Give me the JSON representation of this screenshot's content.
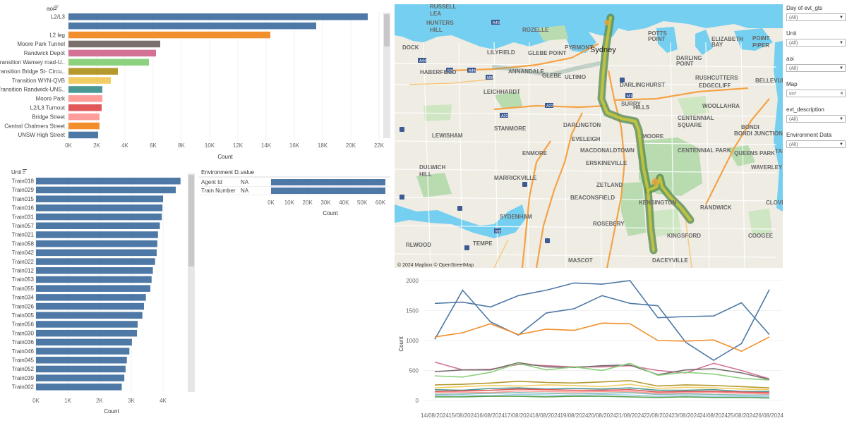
{
  "aoi_chart": {
    "title": "aoi",
    "xlabel": "Count",
    "ticks": [
      "0K",
      "2K",
      "4K",
      "6K",
      "8K",
      "10K",
      "12K",
      "14K",
      "16K",
      "18K",
      "20K",
      "22K"
    ],
    "xmax": 22000,
    "rows": [
      {
        "label": "L2/L3",
        "value": 21200,
        "color": "#4e79a7"
      },
      {
        "label": "",
        "value": 17550,
        "color": "#4e79a7"
      },
      {
        "label": "L2 leg",
        "value": 14300,
        "color": "#f28e2b"
      },
      {
        "label": "Moore Park Tunnel",
        "value": 6500,
        "color": "#79706e"
      },
      {
        "label": "Randwick Depot",
        "value": 6200,
        "color": "#d37295"
      },
      {
        "label": "Transition Wansey road-U..",
        "value": 5700,
        "color": "#8cd17d"
      },
      {
        "label": "Transition Bridge St- Circu..",
        "value": 3500,
        "color": "#b6992d"
      },
      {
        "label": "Transition WYN-QVB",
        "value": 3000,
        "color": "#f1ce63"
      },
      {
        "label": "Transition Randwick-UNS..",
        "value": 2400,
        "color": "#499894"
      },
      {
        "label": "Moore Park",
        "value": 2400,
        "color": "#ff9d9a"
      },
      {
        "label": "L2/L3 Turnout",
        "value": 2350,
        "color": "#e15759"
      },
      {
        "label": "Bridge Street",
        "value": 2200,
        "color": "#ff9d9a"
      },
      {
        "label": "Central Chalmers Street",
        "value": 2200,
        "color": "#f28e2b"
      },
      {
        "label": "UNSW High Street",
        "value": 2100,
        "color": "#4e79a7"
      }
    ]
  },
  "unit_chart": {
    "title": "Unit",
    "xlabel": "Count",
    "ticks": [
      "0K",
      "1K",
      "2K",
      "3K",
      "4K"
    ],
    "xmax": 4000,
    "color": "#4e79a7",
    "rows": [
      {
        "label": "Train018",
        "value": 4550
      },
      {
        "label": "Train029",
        "value": 4400
      },
      {
        "label": "Train015",
        "value": 4000
      },
      {
        "label": "Train016",
        "value": 3980
      },
      {
        "label": "Train031",
        "value": 3960
      },
      {
        "label": "Train057",
        "value": 3900
      },
      {
        "label": "Train021",
        "value": 3840
      },
      {
        "label": "Train058",
        "value": 3820
      },
      {
        "label": "Train042",
        "value": 3800
      },
      {
        "label": "Train022",
        "value": 3750
      },
      {
        "label": "Train012",
        "value": 3680
      },
      {
        "label": "Train053",
        "value": 3640
      },
      {
        "label": "Train055",
        "value": 3600
      },
      {
        "label": "Train034",
        "value": 3460
      },
      {
        "label": "Train026",
        "value": 3400
      },
      {
        "label": "Train005",
        "value": 3350
      },
      {
        "label": "Train056",
        "value": 3200
      },
      {
        "label": "Train030",
        "value": 3180
      },
      {
        "label": "Train036",
        "value": 3020
      },
      {
        "label": "Train046",
        "value": 2940
      },
      {
        "label": "Train045",
        "value": 2860
      },
      {
        "label": "Train052",
        "value": 2820
      },
      {
        "label": "Train039",
        "value": 2780
      },
      {
        "label": "Train002",
        "value": 2700
      }
    ]
  },
  "env_chart": {
    "col1": "Environment D..",
    "col2": "value",
    "xlabel": "Count",
    "ticks": [
      "0K",
      "10K",
      "20K",
      "30K",
      "40K",
      "50K",
      "60K"
    ],
    "xmax": 60000,
    "color": "#4e79a7",
    "rows": [
      {
        "label": "Agent Id",
        "value_text": "NA",
        "value": 63000
      },
      {
        "label": "Train Number",
        "value_text": "NA",
        "value": 63000
      }
    ]
  },
  "map": {
    "attribution": "© 2024 Mapbox  © OpenStreetMap",
    "city_label": "Sydney",
    "labels": [
      {
        "text": "RUSSELL",
        "x": 609,
        "y": 12
      },
      {
        "text": "LEA",
        "x": 609,
        "y": 22
      },
      {
        "text": "HUNTERS",
        "x": 604,
        "y": 35
      },
      {
        "text": "HILL",
        "x": 609,
        "y": 45
      },
      {
        "text": "DOCK",
        "x": 570,
        "y": 70
      },
      {
        "text": "ROZELLE",
        "x": 740,
        "y": 45
      },
      {
        "text": "LILYFIELD",
        "x": 690,
        "y": 77
      },
      {
        "text": "PYRMONT",
        "x": 800,
        "y": 70
      },
      {
        "text": "GLEBE POINT",
        "x": 748,
        "y": 78
      },
      {
        "text": "POTTS",
        "x": 918,
        "y": 50
      },
      {
        "text": "POINT",
        "x": 918,
        "y": 58
      },
      {
        "text": "DARLING",
        "x": 958,
        "y": 85
      },
      {
        "text": "POINT",
        "x": 958,
        "y": 93
      },
      {
        "text": "ELIZABETH",
        "x": 1008,
        "y": 58
      },
      {
        "text": "BAY",
        "x": 1008,
        "y": 66
      },
      {
        "text": "POINT",
        "x": 1066,
        "y": 57
      },
      {
        "text": "PIPER",
        "x": 1066,
        "y": 67
      },
      {
        "text": "HABERFIELD",
        "x": 595,
        "y": 105
      },
      {
        "text": "ANNANDALE",
        "x": 720,
        "y": 104
      },
      {
        "text": "LEICHHARDT",
        "x": 685,
        "y": 133
      },
      {
        "text": "GLEBE",
        "x": 768,
        "y": 110
      },
      {
        "text": "ULTIMO",
        "x": 800,
        "y": 112
      },
      {
        "text": "RUSHCUTTERS",
        "x": 985,
        "y": 113
      },
      {
        "text": "EDGECLIFF",
        "x": 990,
        "y": 124
      },
      {
        "text": "BELLEVUE HILL",
        "x": 1070,
        "y": 117
      },
      {
        "text": "DARLINGHURST",
        "x": 878,
        "y": 123
      },
      {
        "text": "WOOLLAHRA",
        "x": 995,
        "y": 153
      },
      {
        "text": "HILLS",
        "x": 897,
        "y": 155
      },
      {
        "text": "SURRY",
        "x": 880,
        "y": 150
      },
      {
        "text": "STANMORE",
        "x": 700,
        "y": 185
      },
      {
        "text": "DARLINGTON",
        "x": 798,
        "y": 180
      },
      {
        "text": "CENTENNIAL",
        "x": 960,
        "y": 170
      },
      {
        "text": "SQUARE",
        "x": 960,
        "y": 180
      },
      {
        "text": "BONDI JUNCTION",
        "x": 1040,
        "y": 192
      },
      {
        "text": "BONDI",
        "x": 1050,
        "y": 183
      },
      {
        "text": "LEWISHAM",
        "x": 612,
        "y": 195
      },
      {
        "text": "EVELEIGH",
        "x": 810,
        "y": 200
      },
      {
        "text": "ENMORE",
        "x": 740,
        "y": 220
      },
      {
        "text": "MACDONALDTOWN",
        "x": 822,
        "y": 216
      },
      {
        "text": "MOORE",
        "x": 910,
        "y": 196
      },
      {
        "text": "CENTENNIAL PARK",
        "x": 960,
        "y": 216
      },
      {
        "text": "QUEENS PARK",
        "x": 1040,
        "y": 220
      },
      {
        "text": "TAMARAMA",
        "x": 1098,
        "y": 217
      },
      {
        "text": "DULWICH",
        "x": 594,
        "y": 240
      },
      {
        "text": "HILL",
        "x": 594,
        "y": 250
      },
      {
        "text": "ERSKINEVILLE",
        "x": 830,
        "y": 234
      },
      {
        "text": "WAVERLEY",
        "x": 1064,
        "y": 240
      },
      {
        "text": "MARRICKVILLE",
        "x": 700,
        "y": 255
      },
      {
        "text": "ZETLAND",
        "x": 845,
        "y": 265
      },
      {
        "text": "KENSINGTON",
        "x": 905,
        "y": 290
      },
      {
        "text": "RANDWICK",
        "x": 992,
        "y": 297
      },
      {
        "text": "BEACONSFIELD",
        "x": 808,
        "y": 283
      },
      {
        "text": "CLOVELLY",
        "x": 1085,
        "y": 290
      },
      {
        "text": "SYDENHAM",
        "x": 708,
        "y": 310
      },
      {
        "text": "ROSEBERY",
        "x": 840,
        "y": 320
      },
      {
        "text": "KINGSFORD",
        "x": 945,
        "y": 337
      },
      {
        "text": "COOGEE",
        "x": 1060,
        "y": 337
      },
      {
        "text": "RLWOOD",
        "x": 575,
        "y": 350
      },
      {
        "text": "TEMPE",
        "x": 670,
        "y": 348
      },
      {
        "text": "MASCOT",
        "x": 805,
        "y": 372
      },
      {
        "text": "DACEYVILLE",
        "x": 924,
        "y": 372
      }
    ]
  },
  "filters": [
    {
      "label": "Day of evt_gts",
      "value": "(All)"
    },
    {
      "label": "Unit",
      "value": "(All)"
    },
    {
      "label": "aoi",
      "value": "(All)"
    },
    {
      "label": "Map",
      "value": "Im*"
    },
    {
      "label": "evt_description",
      "value": "(All)"
    },
    {
      "label": "Environment Data",
      "value": "(All)"
    }
  ],
  "chart_data": [
    {
      "type": "bar",
      "title": "aoi",
      "xlabel": "Count",
      "categories": [
        "L2/L3",
        "",
        "L2 leg",
        "Moore Park Tunnel",
        "Randwick Depot",
        "Transition Wansey road-U..",
        "Transition Bridge St- Circu..",
        "Transition WYN-QVB",
        "Transition Randwick-UNS..",
        "Moore Park",
        "L2/L3 Turnout",
        "Bridge Street",
        "Central Chalmers Street",
        "UNSW High Street"
      ],
      "values": [
        21200,
        17550,
        14300,
        6500,
        6200,
        5700,
        3500,
        3000,
        2400,
        2400,
        2350,
        2200,
        2200,
        2100
      ],
      "xlim": [
        0,
        22000
      ]
    },
    {
      "type": "bar",
      "title": "Unit",
      "xlabel": "Count",
      "categories": [
        "Train018",
        "Train029",
        "Train015",
        "Train016",
        "Train031",
        "Train057",
        "Train021",
        "Train058",
        "Train042",
        "Train022",
        "Train012",
        "Train053",
        "Train055",
        "Train034",
        "Train026",
        "Train005",
        "Train056",
        "Train030",
        "Train036",
        "Train046",
        "Train045",
        "Train052",
        "Train039",
        "Train002"
      ],
      "values": [
        4550,
        4400,
        4000,
        3980,
        3960,
        3900,
        3840,
        3820,
        3800,
        3750,
        3680,
        3640,
        3600,
        3460,
        3400,
        3350,
        3200,
        3180,
        3020,
        2940,
        2860,
        2820,
        2780,
        2700
      ]
    },
    {
      "type": "bar",
      "xlabel": "Count",
      "categories": [
        "Agent Id",
        "Train Number"
      ],
      "values": [
        63000,
        63000
      ],
      "xlim": [
        0,
        60000
      ]
    },
    {
      "type": "line",
      "ylabel": "Count",
      "x": [
        "14/08/2024",
        "15/08/2024",
        "16/08/2024",
        "17/08/2024",
        "18/08/2024",
        "19/08/2024",
        "20/08/2024",
        "21/08/2024",
        "22/08/2024",
        "23/08/2024",
        "24/08/2024",
        "25/08/2024",
        "26/08/2024"
      ],
      "ylim": [
        0,
        2000
      ],
      "yticks": [
        0,
        500,
        1000,
        1500,
        2000
      ],
      "series": [
        {
          "color": "#4e79a7",
          "values": [
            1620,
            1640,
            1560,
            1750,
            1840,
            1960,
            1940,
            2000,
            1380,
            1400,
            1410,
            1630,
            1100
          ]
        },
        {
          "color": "#4e79a7",
          "values": [
            1020,
            1840,
            1310,
            1090,
            1460,
            1530,
            1750,
            1620,
            1580,
            970,
            670,
            950,
            1850
          ]
        },
        {
          "color": "#f28e2b",
          "values": [
            1060,
            1130,
            1280,
            1100,
            1190,
            1170,
            1290,
            1280,
            1000,
            990,
            1010,
            820,
            1060
          ]
        },
        {
          "color": "#d37295",
          "values": [
            640,
            510,
            520,
            600,
            580,
            560,
            560,
            580,
            500,
            460,
            620,
            500,
            360
          ]
        },
        {
          "color": "#79706e",
          "values": [
            480,
            510,
            510,
            630,
            560,
            550,
            580,
            590,
            430,
            510,
            530,
            460,
            350
          ]
        },
        {
          "color": "#8cd17d",
          "values": [
            410,
            390,
            470,
            620,
            510,
            560,
            500,
            620,
            420,
            470,
            440,
            370,
            340
          ]
        },
        {
          "color": "#b6992d",
          "values": [
            260,
            270,
            290,
            320,
            300,
            290,
            310,
            330,
            240,
            260,
            250,
            230,
            210
          ]
        },
        {
          "color": "#f1ce63",
          "values": [
            210,
            230,
            250,
            240,
            260,
            250,
            230,
            270,
            200,
            220,
            210,
            190,
            180
          ]
        },
        {
          "color": "#499894",
          "values": [
            180,
            170,
            200,
            210,
            190,
            200,
            190,
            210,
            170,
            170,
            180,
            150,
            150
          ]
        },
        {
          "color": "#e15759",
          "values": [
            150,
            160,
            170,
            190,
            180,
            170,
            170,
            180,
            140,
            150,
            150,
            140,
            130
          ]
        },
        {
          "color": "#ff9d9a",
          "values": [
            130,
            140,
            130,
            160,
            150,
            140,
            150,
            150,
            120,
            130,
            130,
            120,
            110
          ]
        },
        {
          "color": "#86bcb6",
          "values": [
            100,
            110,
            120,
            130,
            120,
            110,
            120,
            130,
            100,
            110,
            100,
            90,
            90
          ]
        },
        {
          "color": "#a0cbe8",
          "values": [
            80,
            90,
            80,
            100,
            90,
            80,
            100,
            90,
            70,
            80,
            70,
            70,
            60
          ]
        },
        {
          "color": "#59a14f",
          "values": [
            60,
            60,
            70,
            70,
            60,
            70,
            70,
            60,
            50,
            60,
            50,
            50,
            40
          ]
        }
      ]
    }
  ]
}
